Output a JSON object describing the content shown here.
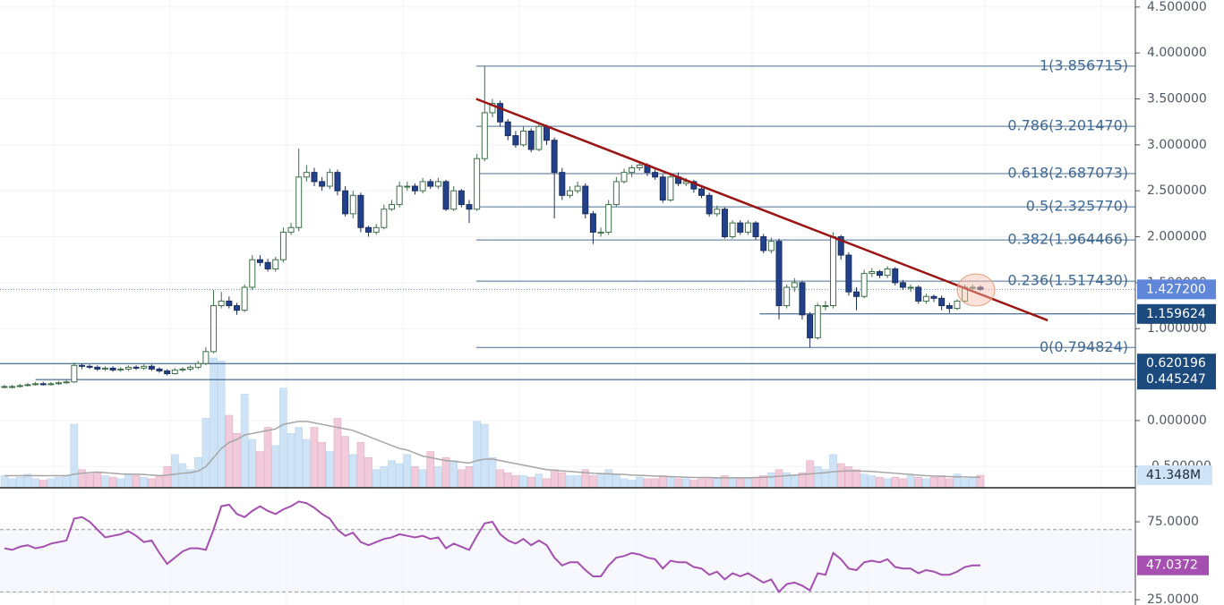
{
  "chart_data": {
    "type": "candlestick",
    "ylim": [
      -0.7317,
      4.5764
    ],
    "yticks": [
      {
        "value": 4.5,
        "label": "4.500000"
      },
      {
        "value": 4,
        "label": "4.000000"
      },
      {
        "value": 3.5,
        "label": "3.500000"
      },
      {
        "value": 3,
        "label": "3.000000"
      },
      {
        "value": 2.5,
        "label": "2.500000"
      },
      {
        "value": 2,
        "label": "2.000000"
      },
      {
        "value": 1.5,
        "label": "1.500000"
      },
      {
        "value": 1,
        "label": "1.000000"
      },
      {
        "value": 0,
        "label": "0.000000"
      },
      {
        "value": -0.5,
        "label": "-0.500000"
      }
    ],
    "up_color": "#ffffff",
    "up_border": "#3c6e47",
    "down_color": "#22418a",
    "down_border": "#1b2f5e",
    "open": [
      0.36,
      0.37,
      0.37,
      0.38,
      0.39,
      0.4,
      0.39,
      0.4,
      0.41,
      0.42,
      0.6,
      0.59,
      0.58,
      0.56,
      0.57,
      0.55,
      0.56,
      0.58,
      0.57,
      0.59,
      0.56,
      0.54,
      0.51,
      0.55,
      0.56,
      0.58,
      0.62,
      0.75,
      1.25,
      1.3,
      1.25,
      1.2,
      1.45,
      1.75,
      1.72,
      1.65,
      1.75,
      2.05,
      2.1,
      2.65,
      2.7,
      2.6,
      2.55,
      2.7,
      2.5,
      2.25,
      2.45,
      2.1,
      2.05,
      2.1,
      2.3,
      2.35,
      2.55,
      2.55,
      2.5,
      2.6,
      2.55,
      2.6,
      2.3,
      2.5,
      2.35,
      2.3,
      2.85,
      3.35,
      3.45,
      3.25,
      3.1,
      3.0,
      3.15,
      2.95,
      3.2,
      3.05,
      2.7,
      2.45,
      2.5,
      2.55,
      2.25,
      2.05,
      2.05,
      2.35,
      2.6,
      2.7,
      2.75,
      2.78,
      2.7,
      2.65,
      2.4,
      2.65,
      2.58,
      2.6,
      2.52,
      2.45,
      2.25,
      2.3,
      2.0,
      2.15,
      2.05,
      2.15,
      2.0,
      1.85,
      1.95,
      1.25,
      1.45,
      1.5,
      1.15,
      0.9,
      1.25,
      1.25,
      2.0,
      1.8,
      1.4,
      1.35,
      1.6,
      1.62,
      1.58,
      1.65,
      1.5,
      1.45,
      1.45,
      1.3,
      1.35,
      1.33,
      1.25,
      1.22,
      1.3,
      1.45,
      1.45
    ],
    "high": [
      0.39,
      0.39,
      0.4,
      0.41,
      0.42,
      0.42,
      0.42,
      0.43,
      0.44,
      0.63,
      0.62,
      0.61,
      0.6,
      0.59,
      0.59,
      0.58,
      0.6,
      0.6,
      0.61,
      0.61,
      0.58,
      0.56,
      0.57,
      0.58,
      0.6,
      0.65,
      0.8,
      1.42,
      1.4,
      1.35,
      1.28,
      1.48,
      1.8,
      1.8,
      1.76,
      1.78,
      2.1,
      2.15,
      2.96,
      2.78,
      2.75,
      2.65,
      2.74,
      2.73,
      2.55,
      2.5,
      2.48,
      2.12,
      2.14,
      2.35,
      2.4,
      2.6,
      2.6,
      2.58,
      2.64,
      2.63,
      2.64,
      2.62,
      2.55,
      2.52,
      2.4,
      2.9,
      3.856715,
      3.5,
      3.48,
      3.28,
      3.15,
      3.2,
      3.18,
      3.24,
      3.22,
      3.08,
      2.75,
      2.55,
      2.6,
      2.58,
      2.28,
      2.1,
      2.4,
      2.65,
      2.74,
      2.78,
      2.82,
      2.8,
      2.74,
      2.68,
      2.7,
      2.7,
      2.64,
      2.62,
      2.55,
      2.48,
      2.34,
      2.32,
      2.18,
      2.18,
      2.18,
      2.17,
      2.03,
      1.99,
      1.98,
      1.48,
      1.55,
      1.52,
      1.18,
      1.28,
      1.3,
      2.05,
      2.02,
      1.83,
      1.45,
      1.64,
      1.66,
      1.64,
      1.68,
      1.67,
      1.53,
      1.48,
      1.47,
      1.38,
      1.37,
      1.36,
      1.28,
      1.32,
      1.48,
      1.48,
      1.47
    ],
    "low": [
      0.35,
      0.35,
      0.36,
      0.37,
      0.38,
      0.38,
      0.38,
      0.39,
      0.4,
      0.41,
      0.56,
      0.56,
      0.54,
      0.54,
      0.53,
      0.53,
      0.54,
      0.55,
      0.55,
      0.54,
      0.52,
      0.49,
      0.5,
      0.53,
      0.54,
      0.56,
      0.6,
      0.73,
      1.22,
      1.22,
      1.15,
      1.18,
      1.42,
      1.68,
      1.62,
      1.62,
      1.72,
      2.02,
      2.06,
      2.6,
      2.55,
      2.5,
      2.52,
      2.45,
      2.22,
      2.2,
      2.05,
      2.0,
      2.02,
      2.08,
      2.28,
      2.32,
      2.5,
      2.46,
      2.47,
      2.52,
      2.52,
      2.28,
      2.28,
      2.32,
      2.15,
      2.28,
      2.82,
      3.3,
      3.2,
      3.05,
      2.97,
      2.98,
      2.92,
      2.93,
      3.0,
      2.2,
      2.4,
      2.42,
      2.47,
      2.2,
      1.92,
      2.0,
      2.02,
      2.33,
      2.58,
      2.65,
      2.72,
      2.66,
      2.62,
      2.37,
      2.38,
      2.55,
      2.55,
      2.48,
      2.42,
      2.22,
      2.22,
      1.98,
      1.98,
      2.02,
      2.02,
      1.97,
      1.82,
      1.82,
      1.1,
      1.22,
      1.4,
      1.1,
      0.794824,
      0.88,
      1.2,
      1.22,
      1.75,
      1.36,
      1.2,
      1.33,
      1.56,
      1.55,
      1.55,
      1.47,
      1.42,
      1.4,
      1.27,
      1.27,
      1.29,
      1.2,
      1.17,
      1.2,
      1.28,
      1.42,
      1.41
    ],
    "close": [
      0.37,
      0.37,
      0.38,
      0.39,
      0.4,
      0.39,
      0.4,
      0.41,
      0.42,
      0.6,
      0.59,
      0.58,
      0.56,
      0.57,
      0.55,
      0.56,
      0.58,
      0.57,
      0.59,
      0.56,
      0.54,
      0.51,
      0.55,
      0.56,
      0.58,
      0.62,
      0.75,
      1.25,
      1.3,
      1.25,
      1.2,
      1.45,
      1.75,
      1.72,
      1.65,
      1.75,
      2.05,
      2.1,
      2.65,
      2.7,
      2.6,
      2.55,
      2.7,
      2.5,
      2.25,
      2.45,
      2.1,
      2.05,
      2.1,
      2.3,
      2.35,
      2.55,
      2.55,
      2.5,
      2.6,
      2.55,
      2.6,
      2.3,
      2.5,
      2.35,
      2.3,
      2.85,
      3.35,
      3.45,
      3.25,
      3.1,
      3.0,
      3.15,
      2.95,
      3.2,
      3.05,
      2.7,
      2.45,
      2.5,
      2.55,
      2.25,
      2.05,
      2.05,
      2.35,
      2.6,
      2.7,
      2.75,
      2.78,
      2.7,
      2.65,
      2.4,
      2.65,
      2.58,
      2.6,
      2.52,
      2.45,
      2.25,
      2.3,
      2.0,
      2.15,
      2.05,
      2.15,
      2.0,
      1.85,
      1.95,
      1.25,
      1.45,
      1.5,
      1.15,
      0.9,
      1.25,
      1.25,
      2.0,
      1.8,
      1.4,
      1.35,
      1.6,
      1.62,
      1.58,
      1.65,
      1.5,
      1.45,
      1.45,
      1.3,
      1.35,
      1.33,
      1.25,
      1.22,
      1.3,
      1.45,
      1.45,
      1.4272
    ],
    "fib_levels": [
      {
        "value": 3.856715,
        "label": "1(3.856715)"
      },
      {
        "value": 3.20147,
        "label": "0.786(3.201470)"
      },
      {
        "value": 2.687073,
        "label": "0.618(2.687073)"
      },
      {
        "value": 2.32577,
        "label": "0.5(2.325770)"
      },
      {
        "value": 1.964466,
        "label": "0.382(1.964466)"
      },
      {
        "value": 1.51743,
        "label": "0.236(1.517430)"
      },
      {
        "value": 0.794824,
        "label": "0(0.794824)"
      }
    ],
    "fib_color": "#4a6f95",
    "price_lines": [
      {
        "value": 1.159624,
        "label": "1.159624"
      },
      {
        "value": 0.620196,
        "label": "0.620196"
      },
      {
        "value": 0.445247,
        "label": "0.445247"
      }
    ],
    "price_line_color": "#1d4a7c",
    "last_price": {
      "value": 1.4272,
      "label": "1.427200",
      "color": "#5f86d8"
    },
    "trendline": {
      "start": 3.5,
      "end": 1.09,
      "color": "#9b1414"
    },
    "volume": {
      "ylim": [
        0,
        430
      ],
      "up_color": "#cfe3f6",
      "down_color": "#f1cbd9",
      "ma_color": "#a5a5a5",
      "values": [
        40,
        30,
        35,
        45,
        30,
        25,
        30,
        35,
        40,
        210,
        60,
        45,
        50,
        40,
        35,
        30,
        45,
        40,
        35,
        30,
        40,
        70,
        110,
        80,
        60,
        100,
        230,
        430,
        420,
        240,
        180,
        310,
        160,
        120,
        200,
        140,
        330,
        180,
        200,
        160,
        200,
        150,
        120,
        230,
        170,
        110,
        150,
        100,
        60,
        70,
        90,
        80,
        110,
        70,
        60,
        120,
        70,
        100,
        90,
        60,
        70,
        220,
        210,
        100,
        60,
        50,
        40,
        40,
        35,
        45,
        30,
        60,
        50,
        40,
        40,
        60,
        40,
        45,
        60,
        45,
        30,
        25,
        35,
        30,
        30,
        40,
        35,
        30,
        30,
        25,
        30,
        35,
        30,
        40,
        30,
        30,
        30,
        35,
        40,
        50,
        60,
        50,
        40,
        50,
        90,
        70,
        60,
        110,
        80,
        70,
        60,
        45,
        40,
        35,
        30,
        35,
        30,
        40,
        35,
        30,
        35,
        40,
        30,
        45,
        30,
        35,
        41.348
      ],
      "ma": [
        40,
        40,
        40,
        40,
        40,
        40,
        40,
        40,
        40,
        45,
        48,
        50,
        52,
        50,
        48,
        46,
        45,
        45,
        44,
        42,
        40,
        42,
        45,
        48,
        50,
        55,
        70,
        100,
        130,
        150,
        160,
        175,
        180,
        185,
        190,
        195,
        210,
        215,
        220,
        220,
        215,
        210,
        205,
        200,
        195,
        190,
        180,
        170,
        160,
        150,
        140,
        130,
        125,
        115,
        105,
        100,
        95,
        90,
        88,
        85,
        82,
        90,
        95,
        95,
        90,
        85,
        80,
        75,
        70,
        65,
        60,
        58,
        56,
        54,
        52,
        50,
        48,
        47,
        46,
        45,
        44,
        42,
        41,
        40,
        39,
        38,
        37,
        36,
        35,
        34,
        34,
        34,
        33,
        33,
        33,
        33,
        33,
        34,
        35,
        36,
        38,
        40,
        42,
        44,
        46,
        48,
        50,
        53,
        55,
        56,
        56,
        55,
        54,
        52,
        50,
        48,
        46,
        44,
        42,
        40,
        39,
        38,
        37,
        36,
        36,
        35,
        35
      ],
      "last": {
        "value": 41.348,
        "label": "41.348M"
      }
    },
    "rsi": {
      "ylim": [
        21.6,
        95.7
      ],
      "color": "#a54fb0",
      "band_color": "#f6f8fd",
      "yticks": [
        {
          "value": 75,
          "label": "75.0000"
        },
        {
          "value": 25,
          "label": "25.0000"
        }
      ],
      "bands": [
        70,
        30
      ],
      "values": [
        58,
        57,
        59,
        60,
        58,
        59,
        61,
        62,
        63,
        77,
        78,
        75,
        70,
        65,
        66,
        67,
        69,
        66,
        62,
        63,
        55,
        48,
        52,
        56,
        58,
        58,
        57,
        70,
        85,
        86,
        80,
        78,
        82,
        85,
        82,
        80,
        83,
        85,
        88,
        87,
        84,
        80,
        77,
        70,
        66,
        68,
        62,
        60,
        62,
        64,
        65,
        67,
        66,
        65,
        66,
        64,
        65,
        58,
        61,
        59,
        57,
        66,
        74,
        75,
        67,
        63,
        61,
        64,
        60,
        63,
        60,
        52,
        47,
        49,
        49,
        44,
        40,
        40,
        47,
        52,
        53,
        55,
        54,
        52,
        51,
        45,
        50,
        49,
        49,
        46,
        45,
        41,
        43,
        38,
        42,
        40,
        42,
        39,
        36,
        38,
        30,
        35,
        36,
        34,
        31,
        42,
        41,
        55,
        51,
        45,
        44,
        49,
        50,
        49,
        51,
        46,
        45,
        45,
        42,
        44,
        43,
        41,
        41,
        43,
        46,
        47,
        47.0372
      ],
      "last": {
        "value": 47.0372,
        "label": "47.0372"
      }
    }
  }
}
